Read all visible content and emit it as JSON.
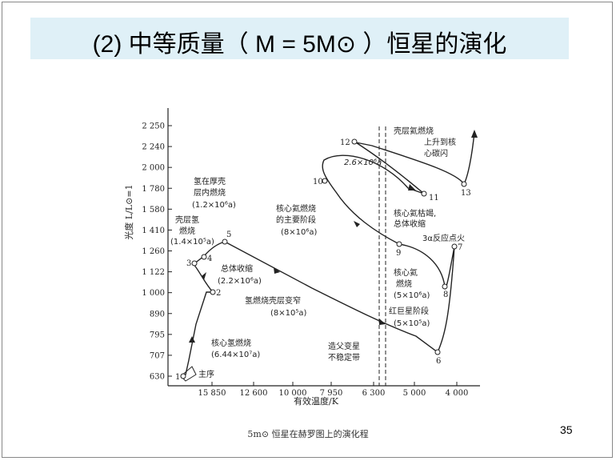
{
  "slide": {
    "title": "(2) 中等质量（ M = 5M⊙ ）恒星的演化",
    "page_number": "35",
    "caption": "5m⊙ 恒星在赫罗图上的演化程"
  },
  "chart_data": {
    "type": "line",
    "xlabel": "有效温度/K",
    "ylabel": "光度 L/L⊙=1",
    "x_ticks": [
      "15 850",
      "12 600",
      "10 000",
      "7 950",
      "6 300",
      "5 000",
      "4 000"
    ],
    "y_ticks": [
      "2 250",
      "2 240",
      "2 000",
      "1 780",
      "1 580",
      "1 410",
      "1 260",
      "1 122",
      "1 000",
      "890",
      "795",
      "707",
      "630"
    ],
    "points": [
      {
        "id": "1",
        "x": "16 500",
        "y": "640"
      },
      {
        "id": "2",
        "x": "15 300",
        "y": "1 000"
      },
      {
        "id": "3",
        "x": "16 100",
        "y": "1 140"
      },
      {
        "id": "4",
        "x": "15 500",
        "y": "1 200"
      },
      {
        "id": "5",
        "x": "14 400",
        "y": "1 330"
      },
      {
        "id": "6",
        "x": "4 400",
        "y": "720"
      },
      {
        "id": "7",
        "x": "4 000",
        "y": "1 270"
      },
      {
        "id": "8",
        "x": "4 300",
        "y": "1 050"
      },
      {
        "id": "9",
        "x": "5 300",
        "y": "1 290"
      },
      {
        "id": "10",
        "x": "7 700",
        "y": "1 800"
      },
      {
        "id": "11",
        "x": "5 100",
        "y": "1 730"
      },
      {
        "id": "12",
        "x": "6 600",
        "y": "2 240"
      },
      {
        "id": "13",
        "x": "4 000",
        "y": "1 780"
      }
    ],
    "annotations": {
      "main_sequence": "主序",
      "core_h_burning": "核心氢燃烧",
      "core_h_burning_time": "(6.44×10⁷a)",
      "shell_h_burning_a": "壳层氢",
      "shell_h_burning_b": "燃烧",
      "shell_h_burning_time": "(1.4×10⁵a)",
      "h_thick_shell_a": "氢在厚壳",
      "h_thick_shell_b": "层内燃烧",
      "h_thick_shell_time": "(1.2×10⁶a)",
      "overall_contraction": "总体收缩",
      "overall_contraction_time": "(2.2×10⁶a)",
      "shell_narrowing": "氢燃烧壳层变窄",
      "shell_narrowing_time": "(8×10⁵a)",
      "core_he_main_a": "核心氦燃烧",
      "core_he_main_b": "的主要阶段",
      "core_he_main_time": "(8×10⁶a)",
      "loop_time": "2.6×10⁶a",
      "shell_he_top": "壳层氦燃烧",
      "rise_to_core_a": "上升到核",
      "rise_to_core_b": "心碳闪",
      "core_he_exhausted_a": "核心氦枯竭,",
      "core_he_exhausted_b": "总体收缩",
      "triple_alpha": "3α反应点火",
      "core_he_a": "核心氦",
      "core_he_b": "燃烧",
      "core_he_time": "(5×10⁶a)",
      "red_giant": "红巨星阶段",
      "red_giant_time": "(5×10⁵a)",
      "cepheid_a": "造父变星",
      "cepheid_b": "不稳定带"
    }
  }
}
